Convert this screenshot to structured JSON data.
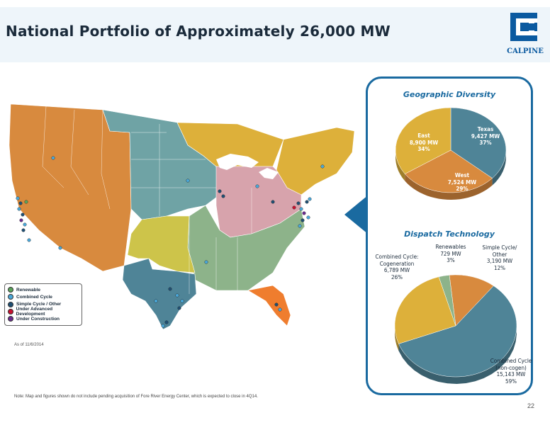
{
  "header": {
    "title": "National Portfolio of Approximately 26,000 MW",
    "logo_text": "CALPINE"
  },
  "legend": {
    "items": [
      {
        "label": "Renewable",
        "color": "#5ba35b"
      },
      {
        "label": "Combined Cycle",
        "color": "#4aa7d8"
      },
      {
        "label": "Simple Cycle / Other",
        "color": "#1f4f73"
      },
      {
        "label": "Under Advanced Development",
        "color": "#c8102e"
      },
      {
        "label": "Under Construction",
        "color": "#6a2c8f"
      }
    ]
  },
  "asof": "As of 11/6/2014",
  "note": "Note:  Map and figures shown do not include pending acquisition of Fore River Energy Center, which is expected to close in 4Q14.",
  "page_number": "22",
  "panel": {
    "geo_title": "Geographic Diversity",
    "dispatch_title": "Dispatch Technology"
  },
  "colors": {
    "west": "#d88a3e",
    "texas": "#4f8497",
    "east": "#ddb03a",
    "midwest": "#6fa3a5",
    "pjm": "#d7a3ac",
    "south": "#8db38a",
    "ok": "#cdc44a",
    "florida": "#ef7d2e",
    "ne": "#e0b03a",
    "accent": "#1a6aa0"
  },
  "chart_data": [
    {
      "type": "pie",
      "title": "Geographic Diversity",
      "slices": [
        {
          "label": "Texas",
          "value_text": "9,427 MW",
          "pct_text": "37%",
          "value": 9427,
          "color": "#4f8497"
        },
        {
          "label": "West",
          "value_text": "7,524 MW",
          "pct_text": "29%",
          "value": 7524,
          "color": "#d88a3e"
        },
        {
          "label": "East",
          "value_text": "8,900 MW",
          "pct_text": "34%",
          "value": 8900,
          "color": "#ddb03a"
        }
      ]
    },
    {
      "type": "pie",
      "title": "Dispatch Technology",
      "slices": [
        {
          "label": "Simple Cycle/ Other",
          "value_text": "3,190 MW",
          "pct_text": "12%",
          "value": 3190,
          "color": "#d88a3e"
        },
        {
          "label": "Combined Cycle (non-cogen)",
          "value_text": "15,143 MW",
          "pct_text": "59%",
          "value": 15143,
          "color": "#4f8497"
        },
        {
          "label": "Combined Cycle: Cogeneration",
          "value_text": "6,789 MW",
          "pct_text": "26%",
          "value": 6789,
          "color": "#ddb03a"
        },
        {
          "label": "Renewables",
          "value_text": "729 MW",
          "pct_text": "3%",
          "value": 729,
          "color": "#8db38a"
        }
      ]
    }
  ]
}
